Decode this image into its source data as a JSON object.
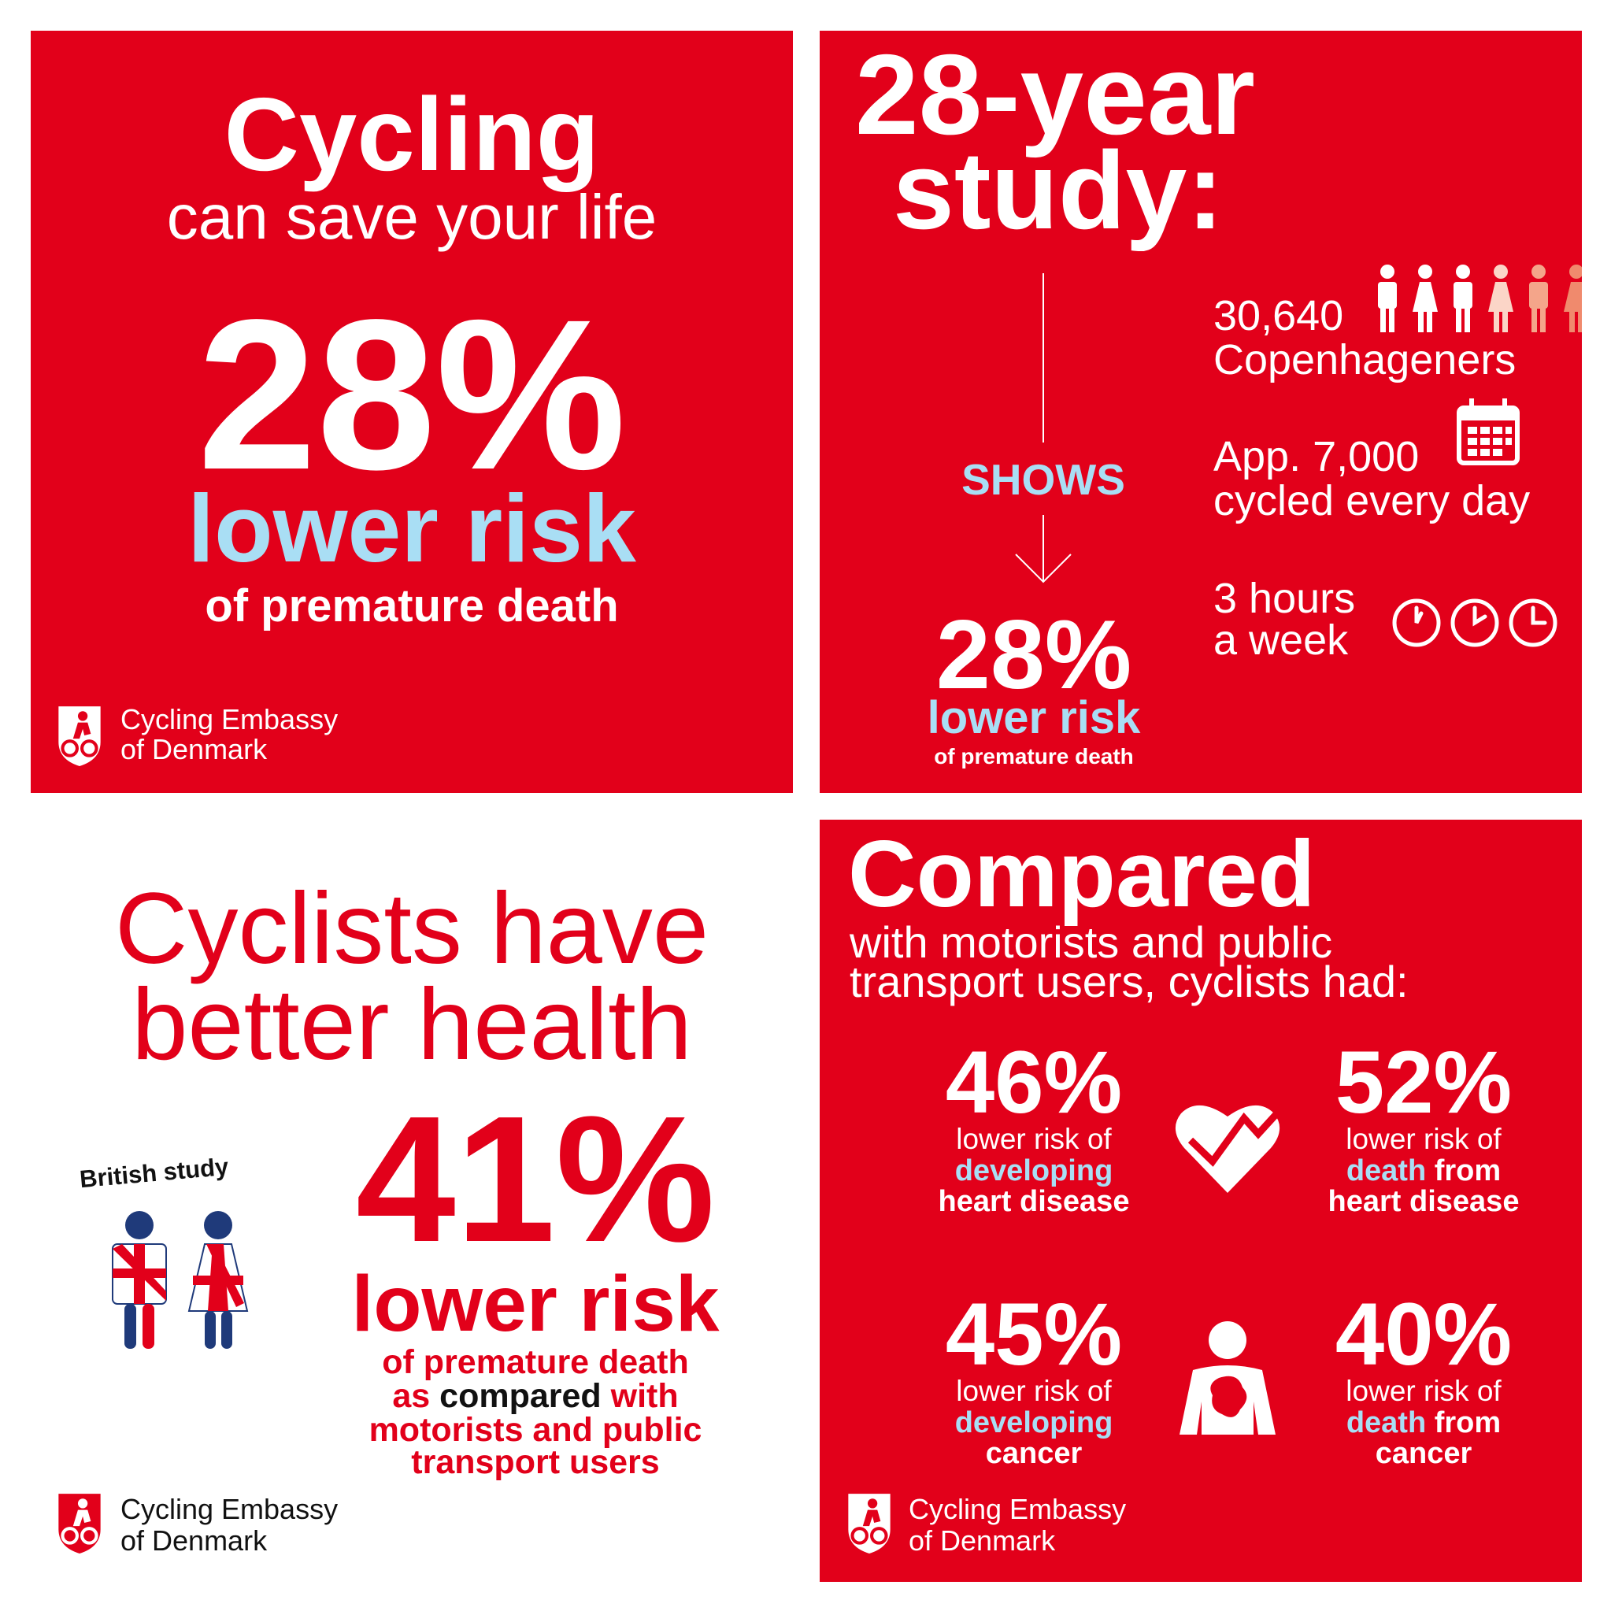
{
  "panel_1": {
    "title": "Cycling",
    "subtitle": "can save your life",
    "stat": "28%",
    "stat_label": "lower risk",
    "stat_note": "of premature death",
    "logo": {
      "line_1": "Cycling Embassy",
      "line_2": "of Denmark"
    }
  },
  "panel_2": {
    "title": {
      "line_1": "28-year",
      "line_2": "study:"
    },
    "shows": "SHOWS",
    "stat": "28%",
    "stat_label": "lower risk",
    "stat_note": "of premature death",
    "facts": [
      {
        "line_1": "30,640",
        "line_2": "Copenhageners"
      },
      {
        "line_1": "App. 7,000",
        "line_2": "cycled every day"
      },
      {
        "line_1": "3 hours",
        "line_2": "a week"
      }
    ]
  },
  "panel_3": {
    "title": {
      "line_1": "Cyclists have",
      "line_2": "better health"
    },
    "study": "British study",
    "stat": "41%",
    "stat_label": "lower risk",
    "note": {
      "line_1": "of premature death",
      "line_2": {
        "before": "as",
        "highlight": "compared",
        "after": "with"
      },
      "line_3": "motorists and public",
      "line_4": "transport users"
    },
    "logo": {
      "line_1": "Cycling Embassy",
      "line_2": "of Denmark"
    }
  },
  "panel_4": {
    "title": "Compared",
    "subtitle": {
      "line_1": "with motorists and public",
      "line_2": "transport users, cyclists had:"
    },
    "stats": [
      {
        "value": "46%",
        "line_1": "lower risk of",
        "line_2": {
          "highlight": "developing"
        },
        "line_3": "heart disease"
      },
      {
        "value": "52%",
        "line_1": "lower risk of",
        "line_2": {
          "highlight": "death",
          "rest": "from"
        },
        "line_3": "heart disease"
      },
      {
        "value": "45%",
        "line_1": "lower risk of",
        "line_2": {
          "highlight": "developing"
        },
        "line_3": "cancer"
      },
      {
        "value": "40%",
        "line_1": "lower risk of",
        "line_2": {
          "highlight": "death",
          "rest": "from"
        },
        "line_3": "cancer"
      }
    ],
    "logo": {
      "line_1": "Cycling Embassy",
      "line_2": "of Denmark"
    }
  }
}
